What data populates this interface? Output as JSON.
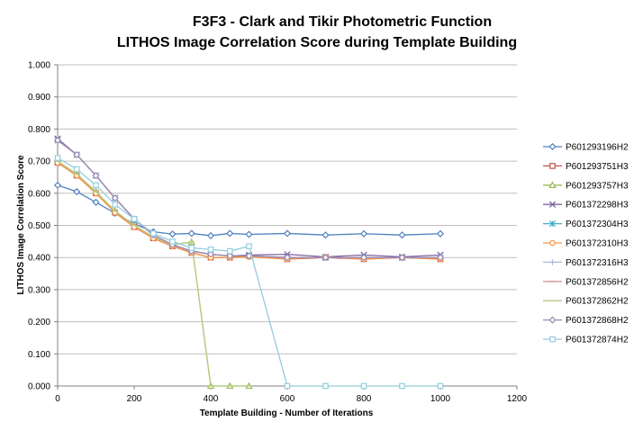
{
  "chart_data": {
    "type": "line",
    "title": "F3F3 - Clark and Tikir Photometric Function",
    "subtitle": "LITHOS Image Correlation Score during Template Building",
    "xlabel": "Template Building - Number of Iterations",
    "ylabel": "LITHOS Image Correlation Score",
    "xlim": [
      0,
      1200
    ],
    "ylim": [
      0,
      1
    ],
    "x_ticks": [
      "0",
      "200",
      "400",
      "600",
      "800",
      "1000",
      "1200"
    ],
    "y_ticks": [
      "0.000",
      "0.100",
      "0.200",
      "0.300",
      "0.400",
      "0.500",
      "0.600",
      "0.700",
      "0.800",
      "0.900",
      "1.000"
    ],
    "grid": "horizontal",
    "legend_position": "right",
    "series": [
      {
        "name": "P601293196H2",
        "color": "#4f81bd",
        "marker": "diamond",
        "x": [
          0,
          50,
          100,
          150,
          200,
          250,
          300,
          350,
          400,
          450,
          500,
          600,
          700,
          800,
          900,
          1000
        ],
        "y": [
          0.625,
          0.605,
          0.572,
          0.538,
          0.505,
          0.48,
          0.473,
          0.475,
          0.468,
          0.475,
          0.472,
          0.475,
          0.47,
          0.474,
          0.47,
          0.474
        ]
      },
      {
        "name": "P601293751H3",
        "color": "#c0504d",
        "marker": "square",
        "x": [
          0,
          50,
          100,
          150,
          200,
          250,
          300,
          350,
          400,
          450,
          500,
          600,
          700,
          800,
          900,
          1000
        ],
        "y": [
          0.695,
          0.655,
          0.6,
          0.54,
          0.495,
          0.46,
          0.435,
          0.415,
          0.4,
          0.4,
          0.405,
          0.395,
          0.4,
          0.395,
          0.4,
          0.395
        ]
      },
      {
        "name": "P601293757H3",
        "color": "#9bbb59",
        "marker": "triangle",
        "x": [
          0,
          50,
          100,
          150,
          200,
          250,
          300,
          350,
          400,
          450,
          500
        ],
        "y": [
          0.7,
          0.66,
          0.605,
          0.545,
          0.5,
          0.465,
          0.44,
          0.448,
          0.0,
          0.0,
          0.0
        ]
      },
      {
        "name": "P601372298H3",
        "color": "#8064a2",
        "marker": "x",
        "x": [
          0,
          50,
          100,
          150,
          200,
          250,
          300,
          350,
          400,
          450,
          500,
          600,
          700,
          800,
          900,
          1000
        ],
        "y": [
          0.77,
          0.72,
          0.655,
          0.585,
          0.52,
          0.47,
          0.44,
          0.42,
          0.41,
          0.405,
          0.408,
          0.41,
          0.402,
          0.408,
          0.402,
          0.408
        ]
      },
      {
        "name": "P601372304H3",
        "color": "#4bacc6",
        "marker": "asterisk",
        "x": [
          0,
          50,
          100,
          150,
          200,
          250,
          300,
          350,
          400,
          450,
          500,
          600,
          700,
          800,
          900,
          1000
        ],
        "y": [
          0.765,
          0.72,
          0.655,
          0.585,
          0.52,
          0.47,
          0.44,
          0.42,
          0.41,
          0.405,
          0.405,
          0.4,
          0.4,
          0.4,
          0.4,
          0.4
        ]
      },
      {
        "name": "P601372310H3",
        "color": "#f79646",
        "marker": "circle",
        "x": [
          0,
          50,
          100,
          150,
          200,
          250,
          300,
          350,
          400,
          450,
          500,
          600,
          700,
          800,
          900,
          1000
        ],
        "y": [
          0.695,
          0.655,
          0.6,
          0.54,
          0.495,
          0.46,
          0.435,
          0.415,
          0.4,
          0.4,
          0.402,
          0.395,
          0.402,
          0.395,
          0.4,
          0.395
        ]
      },
      {
        "name": "P601372316H3",
        "color": "#aabbdd",
        "marker": "plus",
        "x": [
          0,
          50,
          100,
          150,
          200,
          250,
          300,
          350,
          400,
          450,
          500,
          600,
          700,
          800,
          900,
          1000
        ],
        "y": [
          0.765,
          0.72,
          0.655,
          0.585,
          0.52,
          0.47,
          0.44,
          0.42,
          0.41,
          0.405,
          0.405,
          0.4,
          0.4,
          0.4,
          0.4,
          0.4
        ]
      },
      {
        "name": "P601372856H2",
        "color": "#d99694",
        "marker": "dash",
        "x": [
          0,
          50,
          100,
          150,
          200,
          250,
          300,
          350,
          400,
          450,
          500,
          600,
          700,
          800,
          900,
          1000
        ],
        "y": [
          0.765,
          0.72,
          0.655,
          0.585,
          0.52,
          0.47,
          0.44,
          0.42,
          0.41,
          0.405,
          0.405,
          0.4,
          0.4,
          0.4,
          0.4,
          0.4
        ]
      },
      {
        "name": "P601372862H2",
        "color": "#b8cc84",
        "marker": "dash",
        "x": [
          0,
          50,
          100,
          150,
          200,
          250,
          300,
          350,
          400,
          450,
          500
        ],
        "y": [
          0.7,
          0.66,
          0.605,
          0.545,
          0.5,
          0.465,
          0.44,
          0.448,
          0.0,
          0.0,
          0.0
        ]
      },
      {
        "name": "P601372868H2",
        "color": "#9c8ab5",
        "marker": "diamond",
        "x": [
          0,
          50,
          100,
          150,
          200,
          250,
          300,
          350,
          400,
          450,
          500,
          600,
          700,
          800,
          900,
          1000
        ],
        "y": [
          0.765,
          0.72,
          0.655,
          0.585,
          0.52,
          0.47,
          0.44,
          0.42,
          0.41,
          0.405,
          0.405,
          0.4,
          0.4,
          0.4,
          0.4,
          0.4
        ]
      },
      {
        "name": "P601372874H2",
        "color": "#93cddd",
        "marker": "square",
        "x": [
          0,
          50,
          100,
          150,
          200,
          250,
          300,
          350,
          400,
          450,
          500,
          600,
          700,
          800,
          900,
          1000
        ],
        "y": [
          0.71,
          0.675,
          0.625,
          0.565,
          0.52,
          0.475,
          0.45,
          0.43,
          0.425,
          0.42,
          0.435,
          0.0,
          0.0,
          0.0,
          0.0,
          0.0
        ]
      }
    ]
  }
}
